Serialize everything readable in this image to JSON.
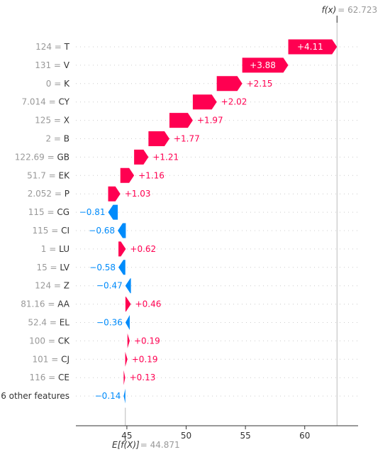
{
  "chart_data": {
    "type": "waterfall",
    "base_value": 44.871,
    "output_value": 62.723,
    "base_label": "E[f(X)]",
    "output_label": "f(x)",
    "base_value_text": "44.871",
    "output_value_text": "62.723",
    "xlim": [
      40.7,
      64.5
    ],
    "xticks": [
      45,
      50,
      55,
      60
    ],
    "colors": {
      "positive": "#ff0051",
      "negative": "#008bfb"
    },
    "features": [
      {
        "value": "124",
        "name": "T",
        "shap": 4.11,
        "label": "+4.11"
      },
      {
        "value": "131",
        "name": "V",
        "shap": 3.88,
        "label": "+3.88"
      },
      {
        "value": "0",
        "name": "K",
        "shap": 2.15,
        "label": "+2.15"
      },
      {
        "value": "7.014",
        "name": "CY",
        "shap": 2.02,
        "label": "+2.02"
      },
      {
        "value": "125",
        "name": "X",
        "shap": 1.97,
        "label": "+1.97"
      },
      {
        "value": "2",
        "name": "B",
        "shap": 1.77,
        "label": "+1.77"
      },
      {
        "value": "122.69",
        "name": "GB",
        "shap": 1.21,
        "label": "+1.21"
      },
      {
        "value": "51.7",
        "name": "EK",
        "shap": 1.16,
        "label": "+1.16"
      },
      {
        "value": "2.052",
        "name": "P",
        "shap": 1.03,
        "label": "+1.03"
      },
      {
        "value": "115",
        "name": "CG",
        "shap": -0.81,
        "label": "−0.81"
      },
      {
        "value": "115",
        "name": "CI",
        "shap": -0.68,
        "label": "−0.68"
      },
      {
        "value": "1",
        "name": "LU",
        "shap": 0.62,
        "label": "+0.62"
      },
      {
        "value": "15",
        "name": "LV",
        "shap": -0.58,
        "label": "−0.58"
      },
      {
        "value": "124",
        "name": "Z",
        "shap": -0.47,
        "label": "−0.47"
      },
      {
        "value": "81.16",
        "name": "AA",
        "shap": 0.46,
        "label": "+0.46"
      },
      {
        "value": "52.4",
        "name": "EL",
        "shap": -0.36,
        "label": "−0.36"
      },
      {
        "value": "100",
        "name": "CK",
        "shap": 0.19,
        "label": "+0.19"
      },
      {
        "value": "101",
        "name": "CJ",
        "shap": 0.19,
        "label": "+0.19"
      },
      {
        "value": "116",
        "name": "CE",
        "shap": 0.13,
        "label": "+0.13"
      },
      {
        "value": "",
        "name": "6 other features",
        "shap": -0.14,
        "label": "−0.14"
      }
    ]
  }
}
